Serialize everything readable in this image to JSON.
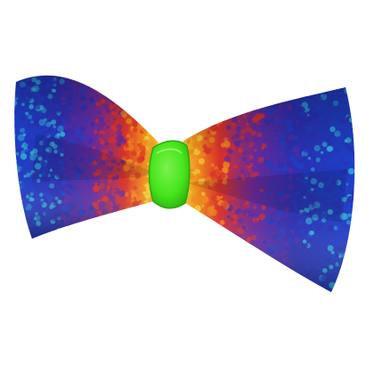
{
  "scene": {
    "subject": "bow-tie",
    "background_color": "#ffffff",
    "palette": {
      "edge_blue": "#1f3fc4",
      "deep_blue": "#2a2fb0",
      "cyan_speckle": "#2fb6d6",
      "violet": "#5b2ba0",
      "red": "#d8312a",
      "orange": "#f08a1c",
      "yellow": "#f4d23a",
      "knot_green": "#44e51c",
      "knot_green_dark": "#2aa80c"
    }
  }
}
